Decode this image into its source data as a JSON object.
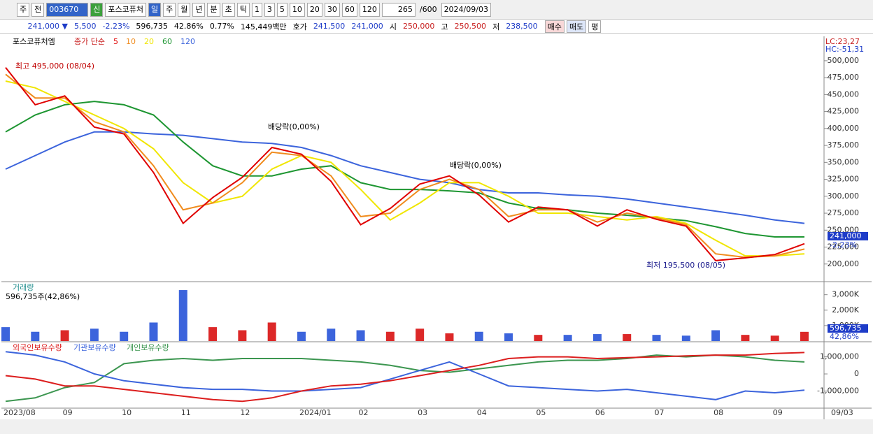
{
  "toolbar": {
    "items": [
      "주",
      "전",
      "003670",
      "신",
      "포스코퓨처",
      "일",
      "주",
      "월",
      "년",
      "분",
      "초",
      "틱",
      "1",
      "3",
      "5",
      "10",
      "20",
      "30",
      "60",
      "120",
      "265",
      "/600",
      "2024/09/03"
    ]
  },
  "info_bar": {
    "items": [
      "241,000 ▼",
      "5,500",
      "-2.23%",
      "596,735",
      "42.86%",
      "0.77%",
      "145,449백만",
      "호가",
      "241,500",
      "241,000",
      "시",
      "250,000",
      "고",
      "250,500",
      "저",
      "238,500",
      "매수",
      "매도",
      "평"
    ]
  },
  "chart_data": [
    {
      "type": "line",
      "title": "포스코퓨처엠",
      "subtitle": "종가 단순",
      "categories": [
        "2023/08",
        null,
        "09",
        null,
        "10",
        null,
        "11",
        null,
        "12",
        null,
        "2024/01",
        null,
        "02",
        null,
        "03",
        null,
        "04",
        null,
        "05",
        null,
        "06",
        null,
        "07",
        null,
        "08",
        null,
        "09",
        null
      ],
      "series": [
        {
          "name": "5",
          "color": "#e00000",
          "values": [
            490000,
            435000,
            448000,
            402000,
            392000,
            335000,
            260000,
            298000,
            328000,
            372000,
            362000,
            322000,
            258000,
            282000,
            318000,
            330000,
            302000,
            262000,
            284000,
            280000,
            256000,
            280000,
            266000,
            256000,
            205000,
            209000,
            214000,
            230000
          ]
        },
        {
          "name": "10",
          "color": "#f08c1e",
          "values": [
            480000,
            445000,
            445000,
            410000,
            395000,
            345000,
            280000,
            290000,
            320000,
            365000,
            360000,
            330000,
            270000,
            275000,
            310000,
            325000,
            310000,
            270000,
            280000,
            280000,
            262000,
            275000,
            268000,
            258000,
            215000,
            210000,
            212000,
            222000
          ]
        },
        {
          "name": "20",
          "color": "#f0e600",
          "values": [
            470000,
            460000,
            440000,
            420000,
            400000,
            370000,
            320000,
            290000,
            300000,
            340000,
            360000,
            350000,
            310000,
            265000,
            290000,
            320000,
            320000,
            300000,
            275000,
            275000,
            270000,
            265000,
            270000,
            260000,
            235000,
            212000,
            212000,
            215000
          ]
        },
        {
          "name": "60",
          "color": "#1e9632",
          "values": [
            395000,
            420000,
            435000,
            440000,
            435000,
            420000,
            380000,
            345000,
            330000,
            330000,
            340000,
            345000,
            320000,
            310000,
            310000,
            308000,
            305000,
            290000,
            282000,
            280000,
            275000,
            272000,
            268000,
            264000,
            255000,
            245000,
            240000,
            240000
          ]
        },
        {
          "name": "120",
          "color": "#3c64dc",
          "values": [
            340000,
            360000,
            380000,
            395000,
            395000,
            392000,
            390000,
            385000,
            380000,
            378000,
            372000,
            360000,
            345000,
            335000,
            325000,
            320000,
            310000,
            305000,
            305000,
            302000,
            300000,
            296000,
            290000,
            284000,
            278000,
            272000,
            265000,
            260000
          ]
        }
      ],
      "ylim": [
        175000,
        536000
      ],
      "yticks": [
        {
          "value": 200000,
          "label": "200,000"
        },
        {
          "value": 225000,
          "label": "225,000"
        },
        {
          "value": 250000,
          "label": "250,000"
        },
        {
          "value": 275000,
          "label": "275,000"
        },
        {
          "value": 300000,
          "label": "300,000"
        },
        {
          "value": 325000,
          "label": "325,000"
        },
        {
          "value": 350000,
          "label": "350,000"
        },
        {
          "value": 375000,
          "label": "375,000"
        },
        {
          "value": 400000,
          "label": "400,000"
        },
        {
          "value": 425000,
          "label": "425,000"
        },
        {
          "value": 450000,
          "label": "450,000"
        },
        {
          "value": 475000,
          "label": "475,000"
        },
        {
          "value": 500000,
          "label": "500,000"
        }
      ],
      "grid": false,
      "annotations": [
        "최고 495,000 (08/04)",
        "배당락(0,00%)",
        "배당락(0,00%)",
        "최저 195,500 (08/05)"
      ],
      "corner_labels": [
        "LC:23,27",
        "HC:-51,31"
      ],
      "last_labels": [
        "241,000",
        "-2,23%"
      ]
    },
    {
      "type": "bar",
      "title": "거래량",
      "subtitle": "596,735주(42,86%)",
      "color": "#3c64dc",
      "up_color": "#dc2828",
      "values": [
        900000,
        600000,
        700000,
        800000,
        600000,
        1200000,
        3300000,
        900000,
        700000,
        1200000,
        600000,
        800000,
        700000,
        600000,
        800000,
        500000,
        600000,
        500000,
        400000,
        400000,
        450000,
        450000,
        400000,
        350000,
        700000,
        400000,
        350000,
        596735
      ],
      "ylim": [
        0,
        3800000
      ],
      "yticks": [
        {
          "value": 1000000,
          "label": "1,000K"
        },
        {
          "value": 2000000,
          "label": "2,000K"
        },
        {
          "value": 3000000,
          "label": "3,000K"
        }
      ],
      "last_labels": [
        "596,735",
        "42,86%"
      ]
    },
    {
      "type": "line",
      "series": [
        {
          "name": "외국인보유수량",
          "color": "#dc1e1e",
          "values": [
            -100000,
            -300000,
            -700000,
            -700000,
            -900000,
            -1100000,
            -1300000,
            -1500000,
            -1600000,
            -1400000,
            -1000000,
            -700000,
            -600000,
            -400000,
            -100000,
            200000,
            500000,
            900000,
            1000000,
            1000000,
            900000,
            950000,
            1000000,
            1050000,
            1100000,
            1100000,
            1200000,
            1250000
          ]
        },
        {
          "name": "기관보유수량",
          "color": "#3c64dc",
          "values": [
            1300000,
            1100000,
            700000,
            0,
            -400000,
            -600000,
            -800000,
            -900000,
            -900000,
            -1000000,
            -1000000,
            -900000,
            -800000,
            -300000,
            200000,
            700000,
            0,
            -700000,
            -800000,
            -900000,
            -1000000,
            -900000,
            -1100000,
            -1300000,
            -1500000,
            -1000000,
            -1100000,
            -950000
          ]
        },
        {
          "name": "개인보유수량",
          "color": "#3c9650",
          "values": [
            -1600000,
            -1400000,
            -800000,
            -500000,
            600000,
            800000,
            900000,
            800000,
            900000,
            900000,
            900000,
            800000,
            700000,
            500000,
            200000,
            100000,
            300000,
            500000,
            700000,
            800000,
            800000,
            900000,
            1100000,
            1000000,
            1100000,
            1000000,
            800000,
            700000
          ]
        }
      ],
      "ylim": [
        -2000000,
        1840000
      ],
      "yticks": [
        {
          "value": -1000000,
          "label": "-1,000,000"
        },
        0,
        {
          "value": 1000000,
          "label": "1,000,000"
        }
      ]
    }
  ],
  "footer": {
    "date": "09/03"
  }
}
